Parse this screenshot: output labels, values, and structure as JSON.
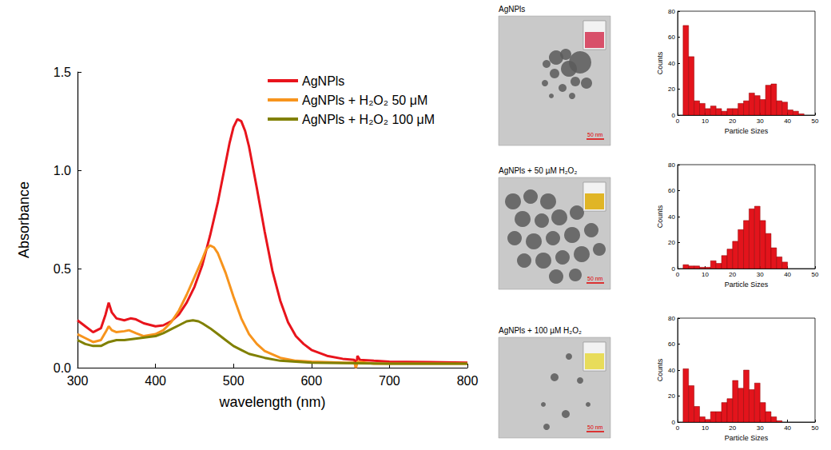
{
  "chart_data": [
    {
      "type": "line",
      "xlabel": "wavelength (nm)",
      "ylabel": "Absorbance",
      "xlim": [
        300,
        800
      ],
      "xticks": [
        300,
        400,
        500,
        600,
        700,
        800
      ],
      "ylim": [
        0,
        1.5
      ],
      "yticks": [
        {
          "value": 0,
          "label": "0.0"
        },
        {
          "value": 0.5,
          "label": "0.5"
        },
        {
          "value": 1,
          "label": "1.0"
        },
        {
          "value": 1.5,
          "label": "1.5"
        }
      ],
      "legend": "upper right",
      "series": [
        {
          "name": "AgNPls",
          "color": "#e8141c",
          "x": [
            300,
            310,
            320,
            330,
            336,
            340,
            344,
            350,
            360,
            368,
            375,
            385,
            400,
            410,
            420,
            430,
            440,
            450,
            460,
            470,
            480,
            490,
            495,
            500,
            505,
            510,
            515,
            520,
            530,
            540,
            550,
            560,
            570,
            580,
            590,
            600,
            620,
            640,
            655,
            657,
            659,
            662,
            680,
            700,
            750,
            800
          ],
          "values": [
            0.24,
            0.21,
            0.18,
            0.2,
            0.27,
            0.33,
            0.28,
            0.25,
            0.24,
            0.25,
            0.245,
            0.225,
            0.21,
            0.215,
            0.235,
            0.27,
            0.33,
            0.41,
            0.52,
            0.67,
            0.84,
            1.04,
            1.14,
            1.22,
            1.26,
            1.25,
            1.2,
            1.12,
            0.91,
            0.69,
            0.49,
            0.34,
            0.23,
            0.16,
            0.12,
            0.09,
            0.06,
            0.045,
            0.04,
            0.0,
            0.06,
            0.04,
            0.035,
            0.03,
            0.028,
            0.025
          ]
        },
        {
          "name": "AgNPls + H₂O₂ 50 μM",
          "color": "#f7941d",
          "x": [
            300,
            310,
            320,
            330,
            336,
            340,
            344,
            350,
            360,
            366,
            375,
            385,
            400,
            410,
            420,
            430,
            440,
            450,
            460,
            465,
            470,
            475,
            480,
            490,
            500,
            510,
            520,
            530,
            540,
            560,
            580,
            600,
            640,
            655,
            657,
            659,
            680,
            700,
            800
          ],
          "values": [
            0.17,
            0.15,
            0.13,
            0.14,
            0.18,
            0.21,
            0.19,
            0.18,
            0.185,
            0.19,
            0.175,
            0.16,
            0.17,
            0.19,
            0.23,
            0.29,
            0.37,
            0.46,
            0.55,
            0.6,
            0.62,
            0.61,
            0.58,
            0.48,
            0.36,
            0.25,
            0.17,
            0.12,
            0.085,
            0.05,
            0.035,
            0.03,
            0.025,
            0.025,
            0.0,
            0.03,
            0.02,
            0.02,
            0.02
          ]
        },
        {
          "name": "AgNPls + H₂O₂ 100 μM",
          "color": "#808000",
          "x": [
            300,
            310,
            320,
            330,
            340,
            350,
            360,
            370,
            380,
            390,
            400,
            410,
            420,
            430,
            440,
            448,
            455,
            460,
            470,
            480,
            490,
            500,
            510,
            520,
            540,
            560,
            600,
            700,
            800
          ],
          "values": [
            0.14,
            0.12,
            0.11,
            0.11,
            0.13,
            0.14,
            0.14,
            0.145,
            0.15,
            0.155,
            0.16,
            0.175,
            0.195,
            0.215,
            0.235,
            0.24,
            0.235,
            0.225,
            0.2,
            0.17,
            0.14,
            0.11,
            0.09,
            0.07,
            0.05,
            0.035,
            0.025,
            0.02,
            0.02
          ]
        }
      ]
    },
    {
      "type": "histogram",
      "xlabel": "Particle Sizes",
      "ylabel": "Counts",
      "color": "#e3141c",
      "bins": [
        2,
        4,
        6,
        8,
        10,
        12,
        14,
        16,
        18,
        20,
        22,
        24,
        26,
        28,
        30,
        32,
        34,
        36,
        38,
        40,
        42,
        44,
        46
      ],
      "counts": [
        69,
        45,
        11,
        9,
        5,
        7,
        5,
        3,
        5,
        5,
        9,
        11,
        17,
        15,
        12,
        23,
        24,
        11,
        10,
        4,
        3,
        1
      ],
      "xlim": [
        0,
        50
      ],
      "xticks": [
        0,
        10,
        20,
        30,
        40,
        50
      ],
      "ylim": [
        0,
        80
      ],
      "yticks": [
        0,
        20,
        40,
        60,
        80
      ]
    },
    {
      "type": "histogram",
      "xlabel": "Particle Sizes",
      "ylabel": "Counts",
      "color": "#e3141c",
      "bins": [
        2,
        4,
        6,
        8,
        10,
        12,
        14,
        16,
        18,
        20,
        22,
        24,
        26,
        28,
        30,
        32,
        34,
        36,
        38,
        40
      ],
      "counts": [
        3,
        2,
        2,
        1,
        1,
        6,
        4,
        10,
        15,
        21,
        30,
        37,
        46,
        48,
        37,
        27,
        16,
        9,
        5
      ],
      "xlim": [
        0,
        50
      ],
      "xticks": [
        0,
        10,
        20,
        30,
        40,
        50
      ],
      "ylim": [
        0,
        80
      ],
      "yticks": [
        0,
        20,
        40,
        60,
        80
      ]
    },
    {
      "type": "histogram",
      "xlabel": "Particle Sizes",
      "ylabel": "Counts",
      "color": "#e3141c",
      "bins": [
        2,
        4,
        6,
        8,
        10,
        12,
        14,
        16,
        18,
        20,
        22,
        24,
        26,
        28,
        30,
        32,
        34,
        36,
        38
      ],
      "counts": [
        41,
        28,
        12,
        4,
        2,
        8,
        8,
        15,
        18,
        32,
        26,
        40,
        25,
        30,
        15,
        8,
        4,
        1
      ],
      "xlim": [
        0,
        50
      ],
      "xticks": [
        0,
        10,
        20,
        30,
        40,
        50
      ],
      "ylim": [
        0,
        80
      ],
      "yticks": [
        0,
        20,
        40,
        60,
        80
      ]
    }
  ],
  "images": [
    {
      "title": "AgNPls",
      "scale_bar": "50 nm",
      "vial_color": "#d8506a"
    },
    {
      "title": "AgNPls + 50 µM H₂O₂",
      "scale_bar": "50 nm",
      "vial_color": "#e0b526"
    },
    {
      "title": "AgNPls + 100 µM H₂O₂",
      "scale_bar": "50 nm",
      "vial_color": "#e8dc5a"
    }
  ]
}
